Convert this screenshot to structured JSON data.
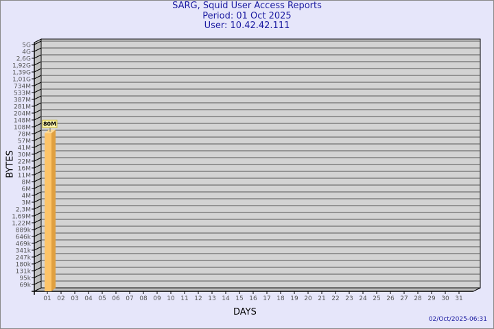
{
  "chart_data": {
    "type": "bar",
    "title": [
      "SARG, Squid User Access Reports",
      "Period: 01 Oct 2025",
      "User: 10.42.42.111"
    ],
    "xlabel": "DAYS",
    "ylabel": "BYTES",
    "y_scale": "log",
    "y_tick_labels": [
      "5G",
      "4G",
      "2,6G",
      "1,92G",
      "1,39G",
      "1,01G",
      "734M",
      "533M",
      "387M",
      "281M",
      "204M",
      "148M",
      "108M",
      "78M",
      "57M",
      "41M",
      "30M",
      "22M",
      "16M",
      "11M",
      "8M",
      "6M",
      "4M",
      "3M",
      "2,3M",
      "1,69M",
      "1,22M",
      "889k",
      "646k",
      "469k",
      "341k",
      "247k",
      "180k",
      "131k",
      "95k",
      "69k"
    ],
    "categories": [
      "01",
      "02",
      "03",
      "04",
      "05",
      "06",
      "07",
      "08",
      "09",
      "10",
      "11",
      "12",
      "13",
      "14",
      "15",
      "16",
      "17",
      "18",
      "19",
      "20",
      "21",
      "22",
      "23",
      "24",
      "25",
      "26",
      "27",
      "28",
      "29",
      "30",
      "31"
    ],
    "series": [
      {
        "values": [
          80000000,
          null,
          null,
          null,
          null,
          null,
          null,
          null,
          null,
          null,
          null,
          null,
          null,
          null,
          null,
          null,
          null,
          null,
          null,
          null,
          null,
          null,
          null,
          null,
          null,
          null,
          null,
          null,
          null,
          null,
          null
        ],
        "data_labels": [
          "80M"
        ]
      }
    ],
    "grid": true,
    "colors": {
      "bar_front": "#fdc468",
      "bar_side": "#e0a040",
      "wall": "#d3d3d3",
      "side_wall": "#c0c0c0",
      "title": "#1a1aa0",
      "label_box": "#fff8b0"
    }
  },
  "footer": "02/Oct/2025-06:31"
}
